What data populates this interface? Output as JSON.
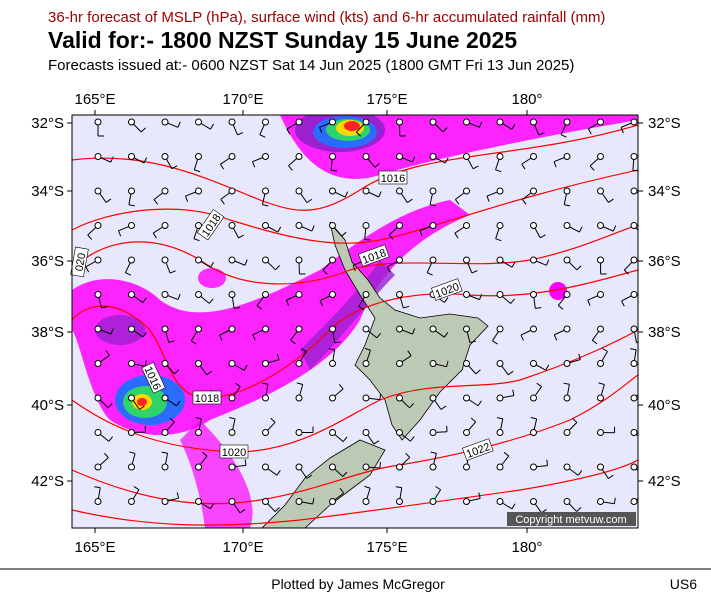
{
  "header": {
    "subtitle": "36-hr forecast of MSLP (hPa), surface wind (kts) and 6-hr accumulated rainfall (mm)",
    "title": "Valid for:- 1800 NZST Sunday 15 June 2025",
    "issued": "Forecasts issued at:- 0600 NZST Sat 14 Jun 2025 (1800 GMT Fri 13 Jun 2025)"
  },
  "map": {
    "lon_labels": [
      "165°E",
      "170°E",
      "175°E",
      "180°"
    ],
    "lat_labels": [
      "32°S",
      "34°S",
      "36°S",
      "38°S",
      "40°S",
      "42°S"
    ],
    "isobar_labels": [
      "1016",
      "1018",
      "020",
      "1018",
      "1020",
      "1016",
      "1018",
      "1020",
      "1022"
    ],
    "copyright": "Copyright metvuw.com"
  },
  "footer": {
    "credit": "Plotted by James McGregor",
    "code": "US6"
  }
}
